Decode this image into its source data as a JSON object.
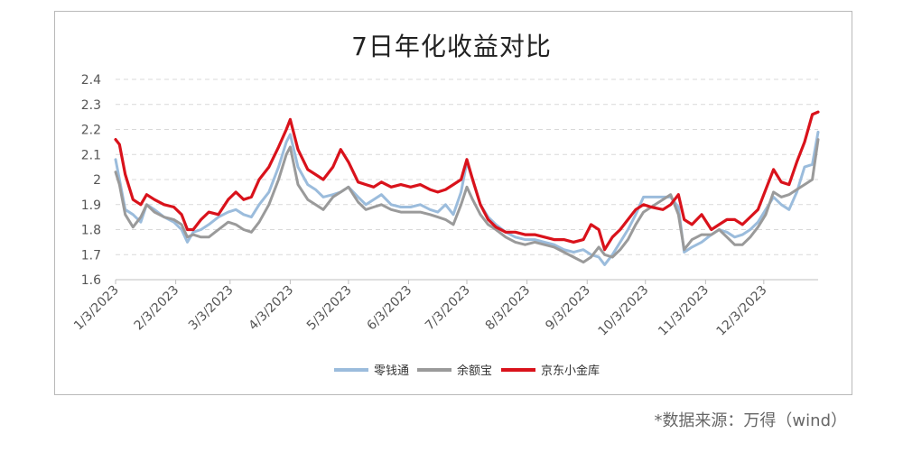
{
  "chart_data": {
    "type": "line",
    "title": "7日年化收益对比",
    "ylim": [
      1.6,
      2.4
    ],
    "yticks": [
      1.6,
      1.7,
      1.8,
      1.9,
      2,
      2.1,
      2.2,
      2.3,
      2.4
    ],
    "grid": true,
    "legend_position": "bottom",
    "x_start": "1/3/2023",
    "x_end": "12/31/2023",
    "xticks": [
      "1/3/2023",
      "2/3/2023",
      "3/3/2023",
      "4/3/2023",
      "5/3/2023",
      "6/3/2023",
      "7/3/2023",
      "8/3/2023",
      "9/3/2023",
      "10/3/2023",
      "11/3/2023",
      "12/3/2023"
    ],
    "series": [
      {
        "name": "零钱通",
        "color": "#9bbcdc",
        "points": [
          [
            "2023-01-03",
            2.08
          ],
          [
            "2023-01-05",
            2.0
          ],
          [
            "2023-01-08",
            1.88
          ],
          [
            "2023-01-12",
            1.86
          ],
          [
            "2023-01-16",
            1.83
          ],
          [
            "2023-01-19",
            1.9
          ],
          [
            "2023-01-23",
            1.88
          ],
          [
            "2023-01-28",
            1.85
          ],
          [
            "2023-02-02",
            1.83
          ],
          [
            "2023-02-06",
            1.8
          ],
          [
            "2023-02-09",
            1.75
          ],
          [
            "2023-02-12",
            1.79
          ],
          [
            "2023-02-16",
            1.8
          ],
          [
            "2023-02-20",
            1.82
          ],
          [
            "2023-02-25",
            1.85
          ],
          [
            "2023-03-02",
            1.87
          ],
          [
            "2023-03-06",
            1.88
          ],
          [
            "2023-03-10",
            1.86
          ],
          [
            "2023-03-14",
            1.85
          ],
          [
            "2023-03-18",
            1.9
          ],
          [
            "2023-03-23",
            1.95
          ],
          [
            "2023-03-28",
            2.05
          ],
          [
            "2023-04-01",
            2.15
          ],
          [
            "2023-04-03",
            2.18
          ],
          [
            "2023-04-07",
            2.05
          ],
          [
            "2023-04-12",
            1.98
          ],
          [
            "2023-04-16",
            1.96
          ],
          [
            "2023-04-20",
            1.93
          ],
          [
            "2023-04-25",
            1.94
          ],
          [
            "2023-04-29",
            1.95
          ],
          [
            "2023-05-03",
            1.97
          ],
          [
            "2023-05-08",
            1.93
          ],
          [
            "2023-05-12",
            1.9
          ],
          [
            "2023-05-16",
            1.92
          ],
          [
            "2023-05-20",
            1.94
          ],
          [
            "2023-05-25",
            1.9
          ],
          [
            "2023-05-30",
            1.89
          ],
          [
            "2023-06-04",
            1.89
          ],
          [
            "2023-06-09",
            1.9
          ],
          [
            "2023-06-14",
            1.88
          ],
          [
            "2023-06-18",
            1.87
          ],
          [
            "2023-06-22",
            1.9
          ],
          [
            "2023-06-26",
            1.86
          ],
          [
            "2023-06-30",
            1.95
          ],
          [
            "2023-07-03",
            2.07
          ],
          [
            "2023-07-06",
            2.0
          ],
          [
            "2023-07-10",
            1.9
          ],
          [
            "2023-07-14",
            1.85
          ],
          [
            "2023-07-18",
            1.82
          ],
          [
            "2023-07-23",
            1.79
          ],
          [
            "2023-07-28",
            1.77
          ],
          [
            "2023-08-02",
            1.76
          ],
          [
            "2023-08-07",
            1.76
          ],
          [
            "2023-08-12",
            1.75
          ],
          [
            "2023-08-17",
            1.74
          ],
          [
            "2023-08-22",
            1.72
          ],
          [
            "2023-08-27",
            1.71
          ],
          [
            "2023-09-01",
            1.72
          ],
          [
            "2023-09-05",
            1.7
          ],
          [
            "2023-09-09",
            1.69
          ],
          [
            "2023-09-12",
            1.66
          ],
          [
            "2023-09-16",
            1.7
          ],
          [
            "2023-09-20",
            1.75
          ],
          [
            "2023-09-24",
            1.8
          ],
          [
            "2023-09-28",
            1.86
          ],
          [
            "2023-10-02",
            1.93
          ],
          [
            "2023-10-06",
            1.93
          ],
          [
            "2023-10-12",
            1.93
          ],
          [
            "2023-10-16",
            1.93
          ],
          [
            "2023-10-20",
            1.89
          ],
          [
            "2023-10-23",
            1.71
          ],
          [
            "2023-10-27",
            1.73
          ],
          [
            "2023-11-01",
            1.75
          ],
          [
            "2023-11-06",
            1.78
          ],
          [
            "2023-11-10",
            1.8
          ],
          [
            "2023-11-14",
            1.79
          ],
          [
            "2023-11-18",
            1.77
          ],
          [
            "2023-11-22",
            1.78
          ],
          [
            "2023-11-26",
            1.8
          ],
          [
            "2023-11-30",
            1.83
          ],
          [
            "2023-12-04",
            1.88
          ],
          [
            "2023-12-08",
            1.93
          ],
          [
            "2023-12-12",
            1.9
          ],
          [
            "2023-12-16",
            1.88
          ],
          [
            "2023-12-20",
            1.95
          ],
          [
            "2023-12-24",
            2.05
          ],
          [
            "2023-12-28",
            2.06
          ],
          [
            "2023-12-31",
            2.19
          ]
        ]
      },
      {
        "name": "余额宝",
        "color": "#9a9a9a",
        "points": [
          [
            "2023-01-03",
            2.03
          ],
          [
            "2023-01-05",
            1.98
          ],
          [
            "2023-01-08",
            1.86
          ],
          [
            "2023-01-12",
            1.81
          ],
          [
            "2023-01-16",
            1.85
          ],
          [
            "2023-01-19",
            1.9
          ],
          [
            "2023-01-23",
            1.87
          ],
          [
            "2023-01-28",
            1.85
          ],
          [
            "2023-02-02",
            1.84
          ],
          [
            "2023-02-06",
            1.82
          ],
          [
            "2023-02-09",
            1.77
          ],
          [
            "2023-02-12",
            1.78
          ],
          [
            "2023-02-16",
            1.77
          ],
          [
            "2023-02-20",
            1.77
          ],
          [
            "2023-02-25",
            1.8
          ],
          [
            "2023-03-02",
            1.83
          ],
          [
            "2023-03-06",
            1.82
          ],
          [
            "2023-03-10",
            1.8
          ],
          [
            "2023-03-14",
            1.79
          ],
          [
            "2023-03-18",
            1.83
          ],
          [
            "2023-03-23",
            1.9
          ],
          [
            "2023-03-28",
            2.0
          ],
          [
            "2023-04-01",
            2.1
          ],
          [
            "2023-04-03",
            2.13
          ],
          [
            "2023-04-07",
            1.98
          ],
          [
            "2023-04-12",
            1.92
          ],
          [
            "2023-04-16",
            1.9
          ],
          [
            "2023-04-20",
            1.88
          ],
          [
            "2023-04-25",
            1.93
          ],
          [
            "2023-04-29",
            1.95
          ],
          [
            "2023-05-03",
            1.97
          ],
          [
            "2023-05-08",
            1.91
          ],
          [
            "2023-05-12",
            1.88
          ],
          [
            "2023-05-16",
            1.89
          ],
          [
            "2023-05-20",
            1.9
          ],
          [
            "2023-05-25",
            1.88
          ],
          [
            "2023-05-30",
            1.87
          ],
          [
            "2023-06-04",
            1.87
          ],
          [
            "2023-06-09",
            1.87
          ],
          [
            "2023-06-14",
            1.86
          ],
          [
            "2023-06-18",
            1.85
          ],
          [
            "2023-06-22",
            1.84
          ],
          [
            "2023-06-26",
            1.82
          ],
          [
            "2023-06-30",
            1.9
          ],
          [
            "2023-07-03",
            1.97
          ],
          [
            "2023-07-06",
            1.92
          ],
          [
            "2023-07-10",
            1.86
          ],
          [
            "2023-07-14",
            1.82
          ],
          [
            "2023-07-18",
            1.8
          ],
          [
            "2023-07-23",
            1.77
          ],
          [
            "2023-07-28",
            1.75
          ],
          [
            "2023-08-02",
            1.74
          ],
          [
            "2023-08-07",
            1.75
          ],
          [
            "2023-08-12",
            1.74
          ],
          [
            "2023-08-17",
            1.73
          ],
          [
            "2023-08-22",
            1.71
          ],
          [
            "2023-08-27",
            1.69
          ],
          [
            "2023-09-01",
            1.67
          ],
          [
            "2023-09-05",
            1.69
          ],
          [
            "2023-09-09",
            1.73
          ],
          [
            "2023-09-12",
            1.7
          ],
          [
            "2023-09-16",
            1.69
          ],
          [
            "2023-09-20",
            1.72
          ],
          [
            "2023-09-24",
            1.76
          ],
          [
            "2023-09-28",
            1.82
          ],
          [
            "2023-10-02",
            1.87
          ],
          [
            "2023-10-06",
            1.89
          ],
          [
            "2023-10-12",
            1.92
          ],
          [
            "2023-10-16",
            1.94
          ],
          [
            "2023-10-20",
            1.86
          ],
          [
            "2023-10-23",
            1.72
          ],
          [
            "2023-10-27",
            1.76
          ],
          [
            "2023-11-01",
            1.78
          ],
          [
            "2023-11-06",
            1.78
          ],
          [
            "2023-11-10",
            1.8
          ],
          [
            "2023-11-14",
            1.77
          ],
          [
            "2023-11-18",
            1.74
          ],
          [
            "2023-11-22",
            1.74
          ],
          [
            "2023-11-26",
            1.77
          ],
          [
            "2023-11-30",
            1.81
          ],
          [
            "2023-12-04",
            1.86
          ],
          [
            "2023-12-08",
            1.95
          ],
          [
            "2023-12-12",
            1.93
          ],
          [
            "2023-12-16",
            1.94
          ],
          [
            "2023-12-20",
            1.96
          ],
          [
            "2023-12-24",
            1.98
          ],
          [
            "2023-12-28",
            2.0
          ],
          [
            "2023-12-31",
            2.16
          ]
        ]
      },
      {
        "name": "京东小金库",
        "color": "#d9121b",
        "points": [
          [
            "2023-01-03",
            2.16
          ],
          [
            "2023-01-05",
            2.14
          ],
          [
            "2023-01-08",
            2.02
          ],
          [
            "2023-01-12",
            1.92
          ],
          [
            "2023-01-16",
            1.9
          ],
          [
            "2023-01-19",
            1.94
          ],
          [
            "2023-01-23",
            1.92
          ],
          [
            "2023-01-28",
            1.9
          ],
          [
            "2023-02-02",
            1.89
          ],
          [
            "2023-02-06",
            1.86
          ],
          [
            "2023-02-09",
            1.8
          ],
          [
            "2023-02-12",
            1.8
          ],
          [
            "2023-02-16",
            1.84
          ],
          [
            "2023-02-20",
            1.87
          ],
          [
            "2023-02-25",
            1.86
          ],
          [
            "2023-03-02",
            1.92
          ],
          [
            "2023-03-06",
            1.95
          ],
          [
            "2023-03-10",
            1.92
          ],
          [
            "2023-03-14",
            1.93
          ],
          [
            "2023-03-18",
            2.0
          ],
          [
            "2023-03-23",
            2.05
          ],
          [
            "2023-03-28",
            2.13
          ],
          [
            "2023-04-01",
            2.2
          ],
          [
            "2023-04-03",
            2.24
          ],
          [
            "2023-04-07",
            2.12
          ],
          [
            "2023-04-12",
            2.04
          ],
          [
            "2023-04-16",
            2.02
          ],
          [
            "2023-04-20",
            2.0
          ],
          [
            "2023-04-25",
            2.05
          ],
          [
            "2023-04-29",
            2.12
          ],
          [
            "2023-05-03",
            2.07
          ],
          [
            "2023-05-08",
            1.99
          ],
          [
            "2023-05-12",
            1.98
          ],
          [
            "2023-05-16",
            1.97
          ],
          [
            "2023-05-20",
            1.99
          ],
          [
            "2023-05-25",
            1.97
          ],
          [
            "2023-05-30",
            1.98
          ],
          [
            "2023-06-04",
            1.97
          ],
          [
            "2023-06-09",
            1.98
          ],
          [
            "2023-06-14",
            1.96
          ],
          [
            "2023-06-18",
            1.95
          ],
          [
            "2023-06-22",
            1.96
          ],
          [
            "2023-06-26",
            1.98
          ],
          [
            "2023-06-30",
            2.0
          ],
          [
            "2023-07-03",
            2.08
          ],
          [
            "2023-07-06",
            2.0
          ],
          [
            "2023-07-10",
            1.9
          ],
          [
            "2023-07-14",
            1.84
          ],
          [
            "2023-07-18",
            1.81
          ],
          [
            "2023-07-23",
            1.79
          ],
          [
            "2023-07-28",
            1.79
          ],
          [
            "2023-08-02",
            1.78
          ],
          [
            "2023-08-07",
            1.78
          ],
          [
            "2023-08-12",
            1.77
          ],
          [
            "2023-08-17",
            1.76
          ],
          [
            "2023-08-22",
            1.76
          ],
          [
            "2023-08-27",
            1.75
          ],
          [
            "2023-09-01",
            1.76
          ],
          [
            "2023-09-05",
            1.82
          ],
          [
            "2023-09-09",
            1.8
          ],
          [
            "2023-09-12",
            1.72
          ],
          [
            "2023-09-16",
            1.77
          ],
          [
            "2023-09-20",
            1.8
          ],
          [
            "2023-09-24",
            1.84
          ],
          [
            "2023-09-28",
            1.88
          ],
          [
            "2023-10-02",
            1.9
          ],
          [
            "2023-10-06",
            1.89
          ],
          [
            "2023-10-12",
            1.88
          ],
          [
            "2023-10-16",
            1.9
          ],
          [
            "2023-10-20",
            1.94
          ],
          [
            "2023-10-23",
            1.84
          ],
          [
            "2023-10-27",
            1.82
          ],
          [
            "2023-11-01",
            1.86
          ],
          [
            "2023-11-06",
            1.8
          ],
          [
            "2023-11-10",
            1.82
          ],
          [
            "2023-11-14",
            1.84
          ],
          [
            "2023-11-18",
            1.84
          ],
          [
            "2023-11-22",
            1.82
          ],
          [
            "2023-11-26",
            1.85
          ],
          [
            "2023-11-30",
            1.88
          ],
          [
            "2023-12-04",
            1.96
          ],
          [
            "2023-12-08",
            2.04
          ],
          [
            "2023-12-12",
            1.99
          ],
          [
            "2023-12-16",
            1.98
          ],
          [
            "2023-12-20",
            2.07
          ],
          [
            "2023-12-24",
            2.15
          ],
          [
            "2023-12-28",
            2.26
          ],
          [
            "2023-12-31",
            2.27
          ]
        ]
      }
    ]
  },
  "source_note": "*数据来源：万得（wind）"
}
